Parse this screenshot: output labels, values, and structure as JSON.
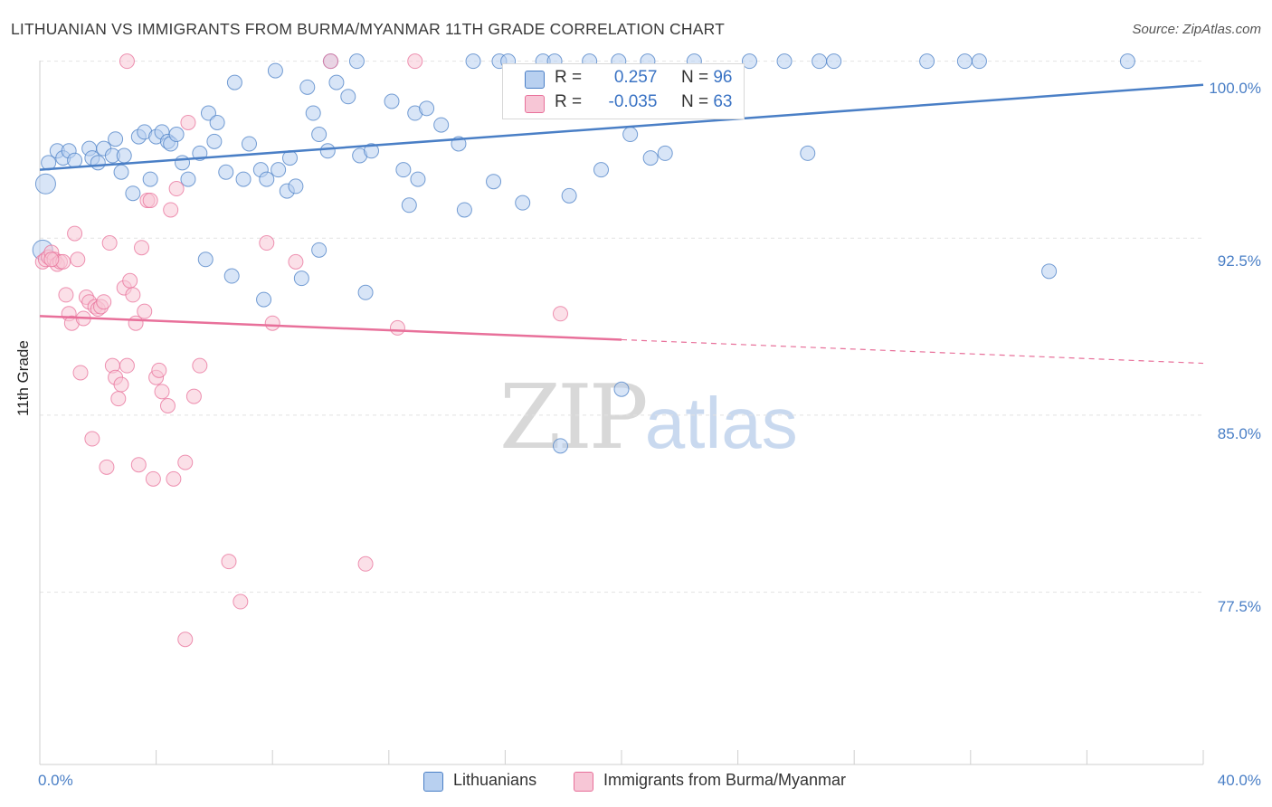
{
  "title": "LITHUANIAN VS IMMIGRANTS FROM BURMA/MYANMAR 11TH GRADE CORRELATION CHART",
  "source": "Source: ZipAtlas.com",
  "watermark": {
    "zip": "ZIP",
    "atlas": "atlas"
  },
  "colors": {
    "blue": "#4a7fc6",
    "blue_fill": "#b8d0f0",
    "pink": "#e8709a",
    "pink_fill": "#f7c6d6",
    "grid": "#e2e2e2"
  },
  "legend": {
    "rows": [
      {
        "r_label": "R =",
        "r_value": "0.257",
        "n_label": "N =",
        "n_value": "96"
      },
      {
        "r_label": "R =",
        "r_value": "-0.035",
        "n_label": "N =",
        "n_value": "63"
      }
    ],
    "bottom": [
      "Lithuanians",
      "Immigrants from Burma/Myanmar"
    ]
  },
  "chart_data": {
    "type": "scatter",
    "xlabel": "",
    "ylabel": "11th Grade",
    "xlim": [
      0,
      40
    ],
    "ylim": [
      70.2,
      100.6
    ],
    "x_tick_labels": [
      "0.0%",
      "40.0%"
    ],
    "y_ticks": [
      100,
      92.5,
      85,
      77.5
    ],
    "y_tick_labels": [
      "100.0%",
      "92.5%",
      "85.0%",
      "77.5%"
    ],
    "grid": true,
    "legend_position": "top-center",
    "series": [
      {
        "name": "Lithuanians",
        "color": "#4a7fc6",
        "trend": {
          "x0": 0,
          "y0": 95.4,
          "x1": 40,
          "y1": 99.0
        },
        "points": [
          [
            0.3,
            95.7
          ],
          [
            0.6,
            96.2
          ],
          [
            0.8,
            95.9
          ],
          [
            1.0,
            96.2
          ],
          [
            1.2,
            95.8
          ],
          [
            1.7,
            96.3
          ],
          [
            1.8,
            95.9
          ],
          [
            2.0,
            95.7
          ],
          [
            2.2,
            96.3
          ],
          [
            2.5,
            96.0
          ],
          [
            2.6,
            96.7
          ],
          [
            2.8,
            95.3
          ],
          [
            2.9,
            96.0
          ],
          [
            3.2,
            94.4
          ],
          [
            3.4,
            96.8
          ],
          [
            3.6,
            97.0
          ],
          [
            3.8,
            95.0
          ],
          [
            4.0,
            96.8
          ],
          [
            4.2,
            97.0
          ],
          [
            4.4,
            96.6
          ],
          [
            4.5,
            96.5
          ],
          [
            4.7,
            96.9
          ],
          [
            4.9,
            95.7
          ],
          [
            5.1,
            95.0
          ],
          [
            5.5,
            96.1
          ],
          [
            5.8,
            97.8
          ],
          [
            6.0,
            96.6
          ],
          [
            6.1,
            97.4
          ],
          [
            6.4,
            95.3
          ],
          [
            6.7,
            99.1
          ],
          [
            7.0,
            95.0
          ],
          [
            7.2,
            96.5
          ],
          [
            7.6,
            95.4
          ],
          [
            7.8,
            95.0
          ],
          [
            8.1,
            99.6
          ],
          [
            8.2,
            95.4
          ],
          [
            8.5,
            94.5
          ],
          [
            8.6,
            95.9
          ],
          [
            8.8,
            94.7
          ],
          [
            9.2,
            98.9
          ],
          [
            9.4,
            97.8
          ],
          [
            9.6,
            96.9
          ],
          [
            9.9,
            96.2
          ],
          [
            10.2,
            99.1
          ],
          [
            10.6,
            98.5
          ],
          [
            11.0,
            96.0
          ],
          [
            11.4,
            96.2
          ],
          [
            12.1,
            98.3
          ],
          [
            12.5,
            95.4
          ],
          [
            12.7,
            93.9
          ],
          [
            12.9,
            97.8
          ],
          [
            13.0,
            95.0
          ],
          [
            13.3,
            98.0
          ],
          [
            13.8,
            97.3
          ],
          [
            14.4,
            96.5
          ],
          [
            14.6,
            93.7
          ],
          [
            15.6,
            94.9
          ],
          [
            16.6,
            94.0
          ],
          [
            17.7,
            98.0
          ],
          [
            18.2,
            94.3
          ],
          [
            19.3,
            95.4
          ],
          [
            20.3,
            96.9
          ],
          [
            21.0,
            95.9
          ],
          [
            21.5,
            96.1
          ],
          [
            26.4,
            96.1
          ],
          [
            10.0,
            100.0
          ],
          [
            10.9,
            100.0
          ],
          [
            14.9,
            100.0
          ],
          [
            15.8,
            100.0
          ],
          [
            16.1,
            100.0
          ],
          [
            17.3,
            100.0
          ],
          [
            17.7,
            100.0
          ],
          [
            18.9,
            100.0
          ],
          [
            19.9,
            100.0
          ],
          [
            20.9,
            100.0
          ],
          [
            22.5,
            100.0
          ],
          [
            24.4,
            100.0
          ],
          [
            25.6,
            100.0
          ],
          [
            26.8,
            100.0
          ],
          [
            27.3,
            100.0
          ],
          [
            30.5,
            100.0
          ],
          [
            31.8,
            100.0
          ],
          [
            32.3,
            100.0
          ],
          [
            37.4,
            100.0
          ],
          [
            0.2,
            94.8
          ],
          [
            0.1,
            92.0
          ],
          [
            5.7,
            91.6
          ],
          [
            6.6,
            90.9
          ],
          [
            7.7,
            89.9
          ],
          [
            9.0,
            90.8
          ],
          [
            9.6,
            92.0
          ],
          [
            11.2,
            90.2
          ],
          [
            20.0,
            86.1
          ],
          [
            17.9,
            83.7
          ],
          [
            34.7,
            91.1
          ]
        ]
      },
      {
        "name": "Immigrants from Burma/Myanmar",
        "color": "#e8709a",
        "trend": {
          "x0": 0,
          "y0": 89.2,
          "x1": 20,
          "y1": 88.2,
          "dash_to_x": 40,
          "dash_to_y": 87.2
        },
        "points": [
          [
            0.1,
            91.5
          ],
          [
            0.2,
            91.6
          ],
          [
            0.3,
            91.7
          ],
          [
            0.4,
            91.9
          ],
          [
            0.5,
            91.6
          ],
          [
            0.6,
            91.4
          ],
          [
            0.7,
            91.5
          ],
          [
            0.8,
            91.5
          ],
          [
            0.9,
            90.1
          ],
          [
            1.0,
            89.3
          ],
          [
            1.1,
            88.9
          ],
          [
            1.2,
            92.7
          ],
          [
            1.3,
            91.6
          ],
          [
            1.4,
            86.8
          ],
          [
            1.5,
            89.1
          ],
          [
            1.6,
            90.0
          ],
          [
            1.7,
            89.8
          ],
          [
            1.8,
            84.0
          ],
          [
            1.9,
            89.6
          ],
          [
            2.0,
            89.5
          ],
          [
            2.1,
            89.6
          ],
          [
            2.2,
            89.8
          ],
          [
            2.3,
            82.8
          ],
          [
            2.4,
            92.3
          ],
          [
            2.5,
            87.1
          ],
          [
            2.6,
            86.6
          ],
          [
            2.7,
            85.7
          ],
          [
            2.8,
            86.3
          ],
          [
            2.9,
            90.4
          ],
          [
            3.0,
            87.1
          ],
          [
            3.1,
            90.7
          ],
          [
            3.2,
            90.1
          ],
          [
            3.3,
            88.9
          ],
          [
            3.4,
            82.9
          ],
          [
            3.5,
            92.1
          ],
          [
            3.6,
            89.4
          ],
          [
            3.7,
            94.1
          ],
          [
            3.8,
            94.1
          ],
          [
            3.9,
            82.3
          ],
          [
            4.0,
            86.6
          ],
          [
            4.1,
            86.9
          ],
          [
            4.2,
            86.0
          ],
          [
            4.4,
            85.4
          ],
          [
            4.5,
            93.7
          ],
          [
            4.6,
            82.3
          ],
          [
            4.7,
            94.6
          ],
          [
            5.0,
            83.0
          ],
          [
            5.1,
            97.4
          ],
          [
            5.3,
            85.8
          ],
          [
            5.5,
            87.1
          ],
          [
            6.5,
            78.8
          ],
          [
            6.9,
            77.1
          ],
          [
            5.0,
            75.5
          ],
          [
            3.0,
            100.0
          ],
          [
            10.0,
            100.0
          ],
          [
            12.9,
            100.0
          ],
          [
            7.8,
            92.3
          ],
          [
            8.0,
            88.9
          ],
          [
            8.8,
            91.5
          ],
          [
            11.2,
            78.7
          ],
          [
            12.3,
            88.7
          ],
          [
            17.9,
            89.3
          ],
          [
            0.4,
            91.6
          ]
        ]
      }
    ]
  }
}
